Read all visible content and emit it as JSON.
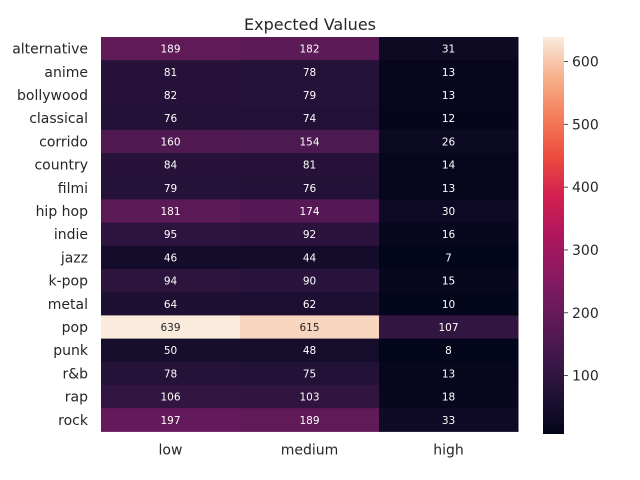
{
  "chart_data": {
    "type": "heatmap",
    "title": "Expected Values",
    "xlabel": "",
    "ylabel": "",
    "columns": [
      "low",
      "medium",
      "high"
    ],
    "rows": [
      "alternative",
      "anime",
      "bollywood",
      "classical",
      "corrido",
      "country",
      "filmi",
      "hip hop",
      "indie",
      "jazz",
      "k-pop",
      "metal",
      "pop",
      "punk",
      "r&b",
      "rap",
      "rock"
    ],
    "values": [
      [
        189,
        182,
        31
      ],
      [
        81,
        78,
        13
      ],
      [
        82,
        79,
        13
      ],
      [
        76,
        74,
        12
      ],
      [
        160,
        154,
        26
      ],
      [
        84,
        81,
        14
      ],
      [
        79,
        76,
        13
      ],
      [
        181,
        174,
        30
      ],
      [
        95,
        92,
        16
      ],
      [
        46,
        44,
        7
      ],
      [
        94,
        90,
        15
      ],
      [
        64,
        62,
        10
      ],
      [
        639,
        615,
        107
      ],
      [
        50,
        48,
        8
      ],
      [
        78,
        75,
        13
      ],
      [
        106,
        103,
        18
      ],
      [
        197,
        189,
        33
      ]
    ],
    "colorbar": {
      "min": 7,
      "max": 639,
      "ticks": [
        100,
        200,
        300,
        400,
        500,
        600
      ],
      "colormap": "rocket"
    },
    "annotations": true,
    "grid": false
  }
}
